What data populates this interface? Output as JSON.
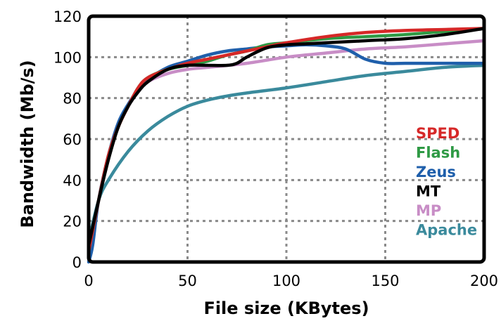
{
  "chart_data": {
    "type": "line",
    "xlabel": "File size (KBytes)",
    "ylabel": "Bandwidth (Mb/s)",
    "xlim": [
      0,
      200
    ],
    "ylim": [
      0,
      120
    ],
    "x_ticks": [
      0,
      50,
      100,
      150,
      200
    ],
    "y_ticks": [
      0,
      20,
      40,
      60,
      80,
      100,
      120
    ],
    "grid": true,
    "legend_position": "right",
    "series": [
      {
        "name": "Apache",
        "color": "#3a8a9c",
        "points": [
          [
            0,
            10
          ],
          [
            5,
            30
          ],
          [
            10,
            40
          ],
          [
            20,
            54
          ],
          [
            30,
            64
          ],
          [
            40,
            71
          ],
          [
            50,
            76
          ],
          [
            60,
            79
          ],
          [
            70,
            81
          ],
          [
            80,
            82.5
          ],
          [
            100,
            85
          ],
          [
            120,
            88
          ],
          [
            140,
            91
          ],
          [
            160,
            93
          ],
          [
            180,
            95
          ],
          [
            200,
            96
          ]
        ]
      },
      {
        "name": "MP",
        "color": "#c88dc6",
        "points": [
          [
            0,
            5
          ],
          [
            5,
            30
          ],
          [
            10,
            52
          ],
          [
            15,
            66
          ],
          [
            20,
            76
          ],
          [
            25,
            83
          ],
          [
            30,
            88
          ],
          [
            40,
            92
          ],
          [
            50,
            94
          ],
          [
            60,
            95
          ],
          [
            80,
            97
          ],
          [
            100,
            100
          ],
          [
            120,
            102
          ],
          [
            140,
            104
          ],
          [
            160,
            105
          ],
          [
            180,
            106.5
          ],
          [
            200,
            108
          ]
        ]
      },
      {
        "name": "Zeus",
        "color": "#1f5fab",
        "points": [
          [
            0,
            0
          ],
          [
            2,
            8
          ],
          [
            5,
            30
          ],
          [
            10,
            52
          ],
          [
            15,
            68
          ],
          [
            20,
            77
          ],
          [
            25,
            84
          ],
          [
            30,
            89
          ],
          [
            40,
            95
          ],
          [
            50,
            98
          ],
          [
            60,
            101
          ],
          [
            70,
            103
          ],
          [
            80,
            104
          ],
          [
            90,
            105
          ],
          [
            100,
            105.5
          ],
          [
            110,
            106
          ],
          [
            120,
            105.5
          ],
          [
            130,
            104
          ],
          [
            140,
            99
          ],
          [
            150,
            97
          ],
          [
            160,
            97
          ],
          [
            180,
            97
          ],
          [
            200,
            97
          ]
        ]
      },
      {
        "name": "Flash",
        "color": "#2f9a45",
        "points": [
          [
            0,
            5
          ],
          [
            5,
            30
          ],
          [
            10,
            52
          ],
          [
            15,
            66
          ],
          [
            20,
            76
          ],
          [
            25,
            85
          ],
          [
            30,
            90
          ],
          [
            40,
            94
          ],
          [
            50,
            96
          ],
          [
            60,
            98
          ],
          [
            70,
            101
          ],
          [
            80,
            103
          ],
          [
            90,
            106
          ],
          [
            100,
            107
          ],
          [
            120,
            109
          ],
          [
            140,
            110
          ],
          [
            160,
            111
          ],
          [
            180,
            112.5
          ],
          [
            200,
            114
          ]
        ]
      },
      {
        "name": "SPED",
        "color": "#d62828",
        "points": [
          [
            0,
            5
          ],
          [
            5,
            30
          ],
          [
            10,
            52
          ],
          [
            15,
            66
          ],
          [
            20,
            76
          ],
          [
            25,
            85
          ],
          [
            30,
            90
          ],
          [
            40,
            94
          ],
          [
            50,
            97
          ],
          [
            60,
            99
          ],
          [
            70,
            101
          ],
          [
            80,
            103
          ],
          [
            90,
            105
          ],
          [
            100,
            107
          ],
          [
            120,
            110
          ],
          [
            140,
            112
          ],
          [
            160,
            113
          ],
          [
            180,
            113.5
          ],
          [
            200,
            114
          ]
        ]
      },
      {
        "name": "MT",
        "color": "#000000",
        "points": [
          [
            0,
            8
          ],
          [
            5,
            30
          ],
          [
            10,
            50
          ],
          [
            15,
            66
          ],
          [
            20,
            76
          ],
          [
            25,
            83
          ],
          [
            30,
            88
          ],
          [
            40,
            94
          ],
          [
            50,
            96
          ],
          [
            60,
            96
          ],
          [
            70,
            96
          ],
          [
            75,
            97
          ],
          [
            80,
            100
          ],
          [
            90,
            104.5
          ],
          [
            100,
            106
          ],
          [
            110,
            106.5
          ],
          [
            120,
            107
          ],
          [
            140,
            108
          ],
          [
            160,
            109
          ],
          [
            180,
            111
          ],
          [
            200,
            114
          ]
        ]
      }
    ],
    "legend_order": [
      "SPED",
      "Flash",
      "Zeus",
      "MT",
      "MP",
      "Apache"
    ]
  }
}
